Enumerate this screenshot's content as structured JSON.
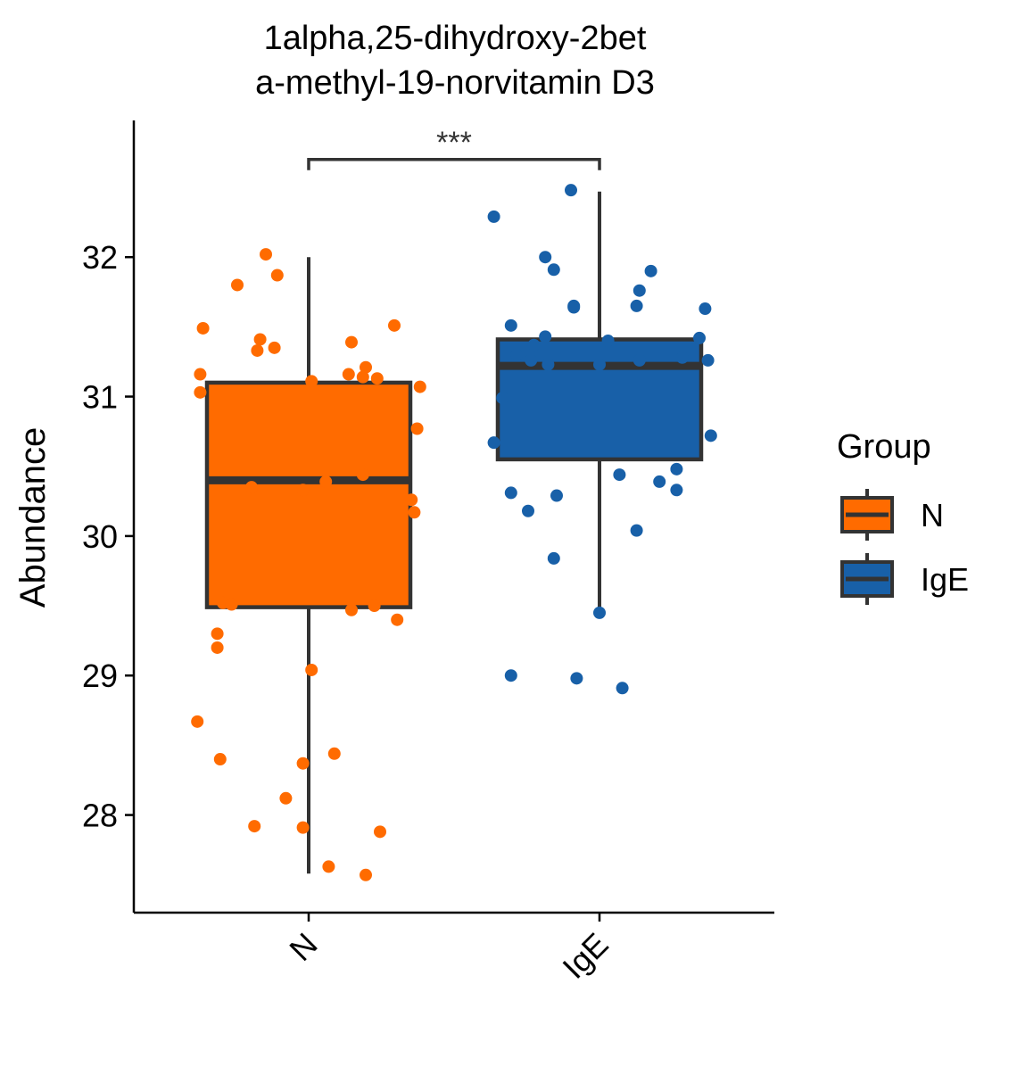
{
  "chart_data": {
    "type": "box",
    "title_lines": [
      "1alpha,25-dihydroxy-2bet",
      "a-methyl-19-norvitamin D3"
    ],
    "xlabel": "",
    "ylabel": "Abundance",
    "ylim": [
      27.3,
      32.98
    ],
    "y_ticks": [
      28,
      29,
      30,
      31,
      32
    ],
    "categories": [
      "N",
      "IgE"
    ],
    "legend": {
      "title": "Group",
      "placement": "right",
      "items": [
        "N",
        "IgE"
      ]
    },
    "significance": {
      "label": "***",
      "between": [
        "N",
        "IgE"
      ],
      "y": 32.7
    },
    "series": [
      {
        "name": "N",
        "color": "#FF6B00",
        "box": {
          "whisker_low": 27.58,
          "q1": 29.49,
          "median": 30.4,
          "q3": 31.1,
          "whisker_high": 32.0
        },
        "points": [
          {
            "dx": -0.15,
            "y": 32.02
          },
          {
            "dx": -0.25,
            "y": 31.8
          },
          {
            "dx": -0.11,
            "y": 31.87
          },
          {
            "dx": -0.37,
            "y": 31.49
          },
          {
            "dx": 0.3,
            "y": 31.51
          },
          {
            "dx": -0.17,
            "y": 31.41
          },
          {
            "dx": 0.15,
            "y": 31.39
          },
          {
            "dx": -0.18,
            "y": 31.33
          },
          {
            "dx": -0.12,
            "y": 31.35
          },
          {
            "dx": 0.2,
            "y": 31.21
          },
          {
            "dx": -0.38,
            "y": 31.16
          },
          {
            "dx": 0.14,
            "y": 31.16
          },
          {
            "dx": 0.19,
            "y": 31.14
          },
          {
            "dx": 0.24,
            "y": 31.13
          },
          {
            "dx": 0.01,
            "y": 31.11
          },
          {
            "dx": 0.39,
            "y": 31.07
          },
          {
            "dx": -0.38,
            "y": 31.03
          },
          {
            "dx": 0.38,
            "y": 30.77
          },
          {
            "dx": 0.19,
            "y": 30.44
          },
          {
            "dx": -0.2,
            "y": 30.35
          },
          {
            "dx": -0.02,
            "y": 30.33
          },
          {
            "dx": 0.06,
            "y": 30.39
          },
          {
            "dx": 0.36,
            "y": 30.26
          },
          {
            "dx": 0.37,
            "y": 30.17
          },
          {
            "dx": -0.3,
            "y": 29.52
          },
          {
            "dx": -0.27,
            "y": 29.51
          },
          {
            "dx": 0.15,
            "y": 29.47
          },
          {
            "dx": 0.23,
            "y": 29.5
          },
          {
            "dx": 0.31,
            "y": 29.4
          },
          {
            "dx": -0.32,
            "y": 29.3
          },
          {
            "dx": -0.32,
            "y": 29.2
          },
          {
            "dx": 0.01,
            "y": 29.04
          },
          {
            "dx": -0.39,
            "y": 28.67
          },
          {
            "dx": 0.09,
            "y": 28.44
          },
          {
            "dx": -0.31,
            "y": 28.4
          },
          {
            "dx": -0.02,
            "y": 28.37
          },
          {
            "dx": -0.08,
            "y": 28.12
          },
          {
            "dx": -0.19,
            "y": 27.92
          },
          {
            "dx": -0.02,
            "y": 27.91
          },
          {
            "dx": 0.25,
            "y": 27.88
          },
          {
            "dx": 0.07,
            "y": 27.63
          },
          {
            "dx": 0.2,
            "y": 27.57
          }
        ]
      },
      {
        "name": "IgE",
        "color": "#1860A8",
        "box": {
          "whisker_low": 29.45,
          "q1": 30.55,
          "median": 31.22,
          "q3": 31.41,
          "whisker_high": 32.47
        },
        "points": [
          {
            "dx": -0.1,
            "y": 32.48
          },
          {
            "dx": -0.37,
            "y": 32.29
          },
          {
            "dx": -0.19,
            "y": 32.0
          },
          {
            "dx": -0.16,
            "y": 31.91
          },
          {
            "dx": 0.18,
            "y": 31.9
          },
          {
            "dx": 0.14,
            "y": 31.76
          },
          {
            "dx": -0.09,
            "y": 31.65
          },
          {
            "dx": -0.09,
            "y": 31.64
          },
          {
            "dx": 0.13,
            "y": 31.65
          },
          {
            "dx": 0.37,
            "y": 31.63
          },
          {
            "dx": -0.31,
            "y": 31.51
          },
          {
            "dx": -0.19,
            "y": 31.43
          },
          {
            "dx": 0.03,
            "y": 31.4
          },
          {
            "dx": 0.35,
            "y": 31.42
          },
          {
            "dx": -0.23,
            "y": 31.37
          },
          {
            "dx": -0.29,
            "y": 31.3
          },
          {
            "dx": -0.24,
            "y": 31.26
          },
          {
            "dx": -0.18,
            "y": 31.23
          },
          {
            "dx": 0.0,
            "y": 31.23
          },
          {
            "dx": 0.14,
            "y": 31.26
          },
          {
            "dx": 0.29,
            "y": 31.28
          },
          {
            "dx": 0.38,
            "y": 31.26
          },
          {
            "dx": -0.34,
            "y": 30.99
          },
          {
            "dx": -0.37,
            "y": 30.67
          },
          {
            "dx": 0.39,
            "y": 30.72
          },
          {
            "dx": 0.27,
            "y": 30.48
          },
          {
            "dx": 0.21,
            "y": 30.39
          },
          {
            "dx": 0.07,
            "y": 30.44
          },
          {
            "dx": 0.27,
            "y": 30.33
          },
          {
            "dx": -0.31,
            "y": 30.31
          },
          {
            "dx": -0.15,
            "y": 30.29
          },
          {
            "dx": -0.25,
            "y": 30.18
          },
          {
            "dx": 0.13,
            "y": 30.04
          },
          {
            "dx": -0.16,
            "y": 29.84
          },
          {
            "dx": 0.0,
            "y": 29.45
          },
          {
            "dx": -0.31,
            "y": 29.0
          },
          {
            "dx": -0.08,
            "y": 28.98
          },
          {
            "dx": 0.08,
            "y": 28.91
          }
        ]
      }
    ]
  }
}
